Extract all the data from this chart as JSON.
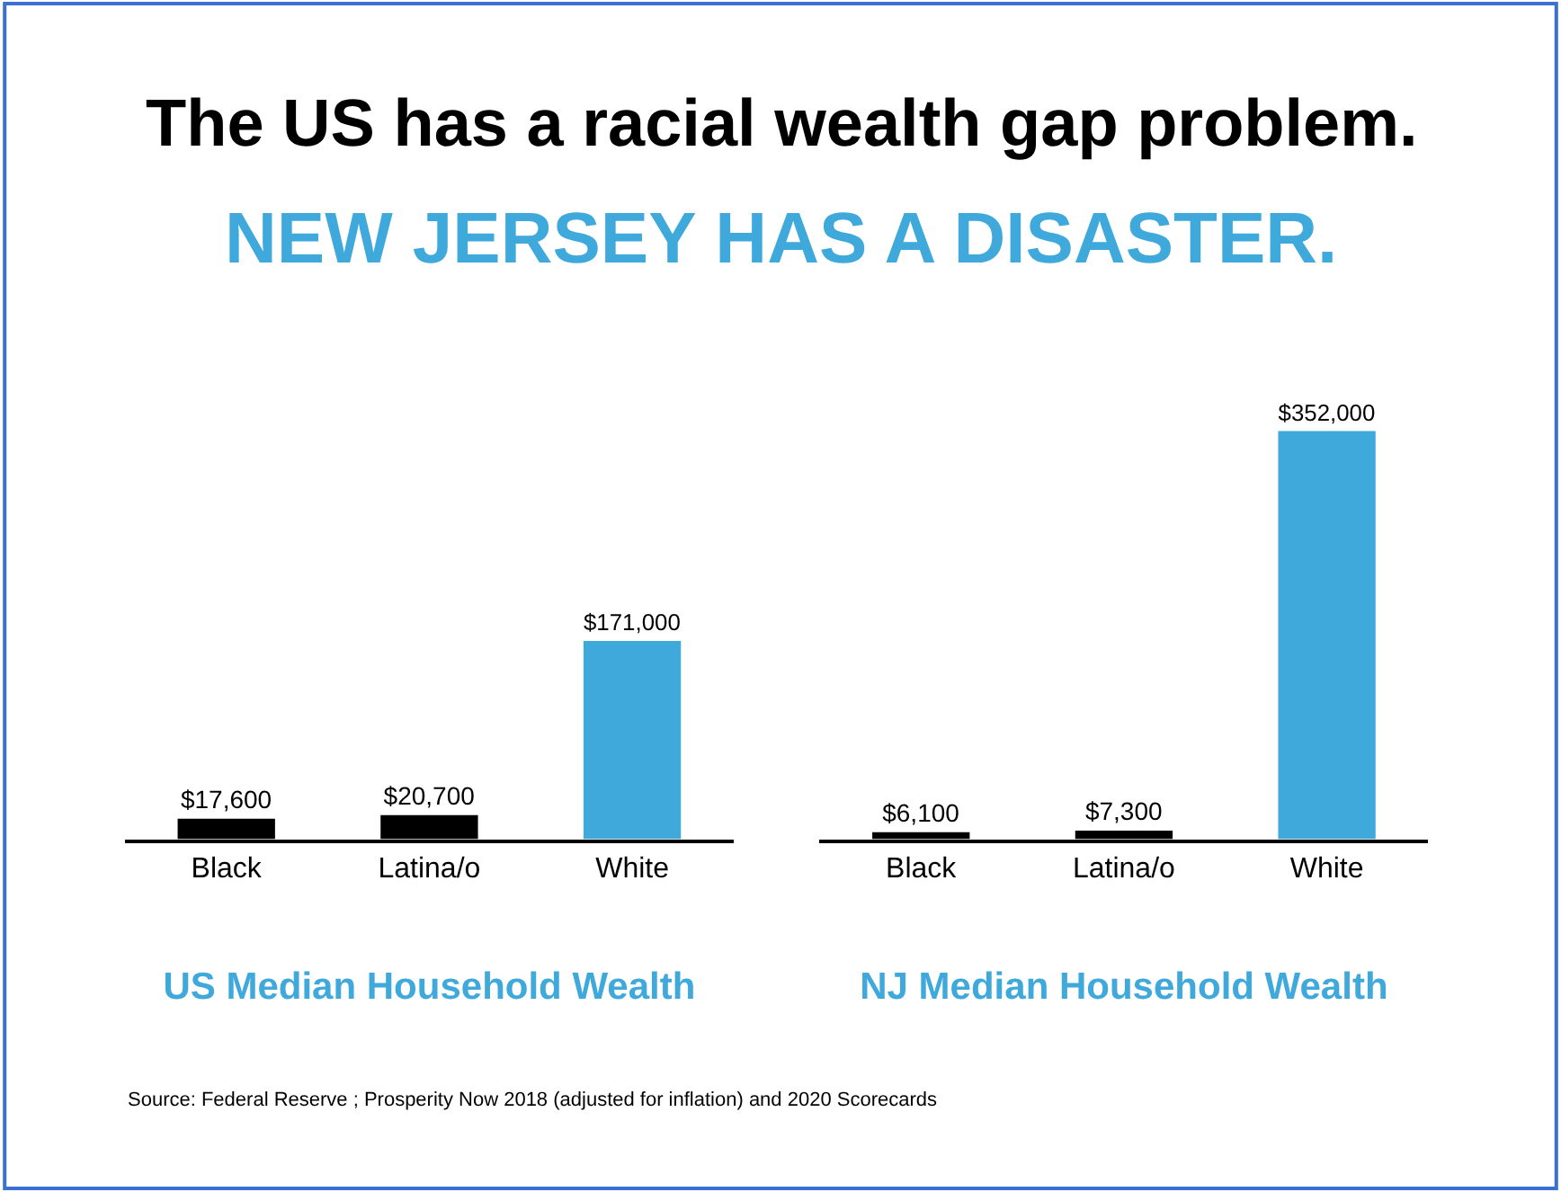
{
  "chart_data": [
    {
      "type": "bar",
      "title": "The US has a racial wealth gap problem.",
      "subtitle": "NEW JERSEY HAS A DISASTER.",
      "xlabel": "US Median Household Wealth",
      "categories": [
        "Black",
        "Latina/o",
        "White"
      ],
      "values": [
        17600,
        20700,
        171000
      ],
      "colors": [
        "#000000",
        "#000000",
        "#3fa9dc"
      ],
      "value_labels": [
        "$17,600",
        "$20,700",
        "$171,000"
      ],
      "annotations": [
        "Source: Federal Reserve ; Prosperity Now 2018 (adjusted for inflation) and 2020 Scorecards"
      ]
    },
    {
      "type": "bar",
      "xlabel": "NJ Median Household Wealth",
      "categories": [
        "Black",
        "Latina/o",
        "White"
      ],
      "values": [
        6100,
        7300,
        352000
      ],
      "colors": [
        "#000000",
        "#000000",
        "#3fa9dc"
      ],
      "value_labels": [
        "$6,100",
        "$7,300",
        "$352,000"
      ]
    }
  ]
}
